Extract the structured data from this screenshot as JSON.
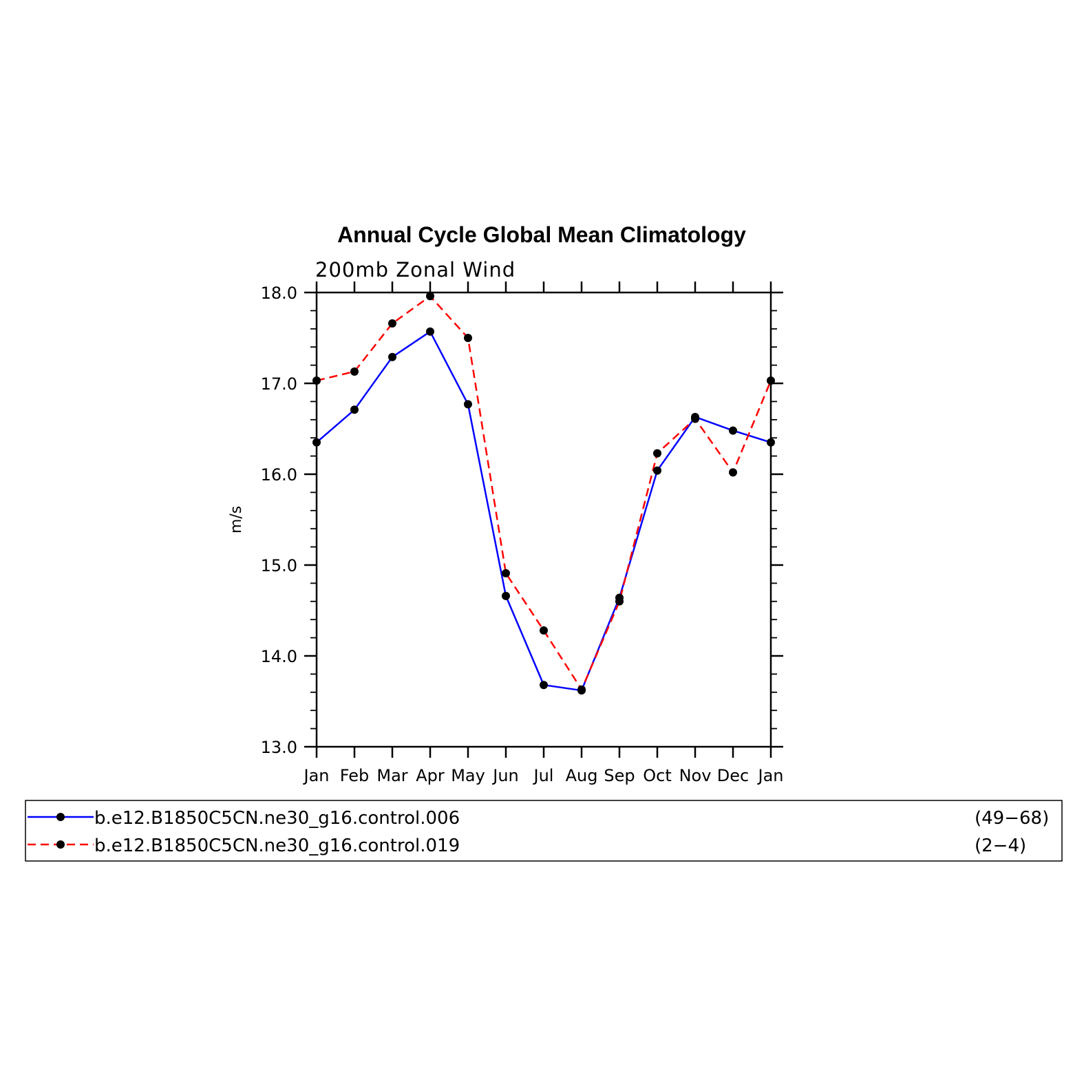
{
  "chart_data": {
    "type": "line",
    "title": "Annual Cycle Global Mean Climatology",
    "subtitle": "200mb Zonal Wind",
    "xlabel": "",
    "ylabel": "m/s",
    "categories": [
      "Jan",
      "Feb",
      "Mar",
      "Apr",
      "May",
      "Jun",
      "Jul",
      "Aug",
      "Sep",
      "Oct",
      "Nov",
      "Dec",
      "Jan"
    ],
    "ylim": [
      13.0,
      18.0
    ],
    "yticks": [
      "13.0",
      "14.0",
      "15.0",
      "16.0",
      "17.0",
      "18.0"
    ],
    "grid": false,
    "legend_position": "bottom",
    "series": [
      {
        "name": "b.e12.B1850C5CN.ne30_g16.control.006",
        "years": "(49−68)",
        "color": "#0000ff",
        "style": "solid",
        "values": [
          16.35,
          16.71,
          17.29,
          17.57,
          16.77,
          14.66,
          13.68,
          13.62,
          14.64,
          16.04,
          16.63,
          16.48,
          16.35
        ]
      },
      {
        "name": "b.e12.B1850C5CN.ne30_g16.control.019",
        "years": "(2−4)",
        "color": "#ff0000",
        "style": "dashed",
        "values": [
          17.03,
          17.13,
          17.66,
          17.96,
          17.5,
          14.91,
          14.28,
          13.63,
          14.6,
          16.23,
          16.61,
          16.02,
          17.03
        ]
      }
    ]
  }
}
